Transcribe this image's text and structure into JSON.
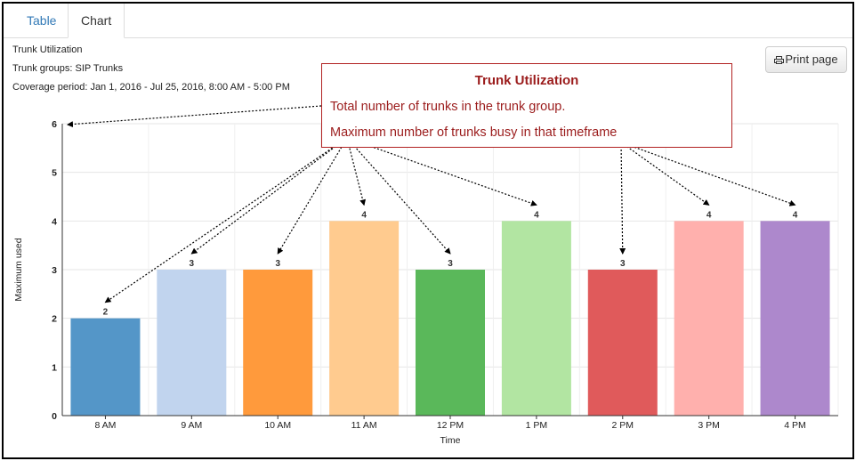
{
  "tabs": [
    {
      "label": "Table",
      "active": false
    },
    {
      "label": "Chart",
      "active": true
    }
  ],
  "report": {
    "title": "Trunk Utilization",
    "trunk_groups": "Trunk groups: SIP Trunks",
    "coverage": "Coverage period: Jan 1, 2016 - Jul 25, 2016, 8:00 AM - 5:00 PM"
  },
  "print_button": {
    "label": "Print page",
    "icon": "printer-icon"
  },
  "callout": {
    "title": "Trunk Utilization",
    "line1": "Total number of trunks in the trunk group.",
    "line2": "Maximum number of trunks busy in that timeframe",
    "color": "#9b1c1c"
  },
  "chart_data": {
    "type": "bar",
    "categories": [
      "8 AM",
      "9 AM",
      "10 AM",
      "11 AM",
      "12 PM",
      "1 PM",
      "2 PM",
      "3 PM",
      "4 PM"
    ],
    "values": [
      2,
      3,
      3,
      4,
      3,
      4,
      3,
      4,
      4
    ],
    "colors": [
      "#5496c8",
      "#c1d4ee",
      "#ff9a3c",
      "#ffcb8f",
      "#5ab85a",
      "#b2e5a2",
      "#e05a5b",
      "#ffb0ad",
      "#ad88cc"
    ],
    "xlabel": "Time",
    "ylabel": "Maximum used",
    "ylim": [
      0,
      6
    ],
    "yticks": [
      0,
      1,
      2,
      3,
      4,
      5,
      6
    ],
    "grid": true,
    "data_labels": true
  }
}
